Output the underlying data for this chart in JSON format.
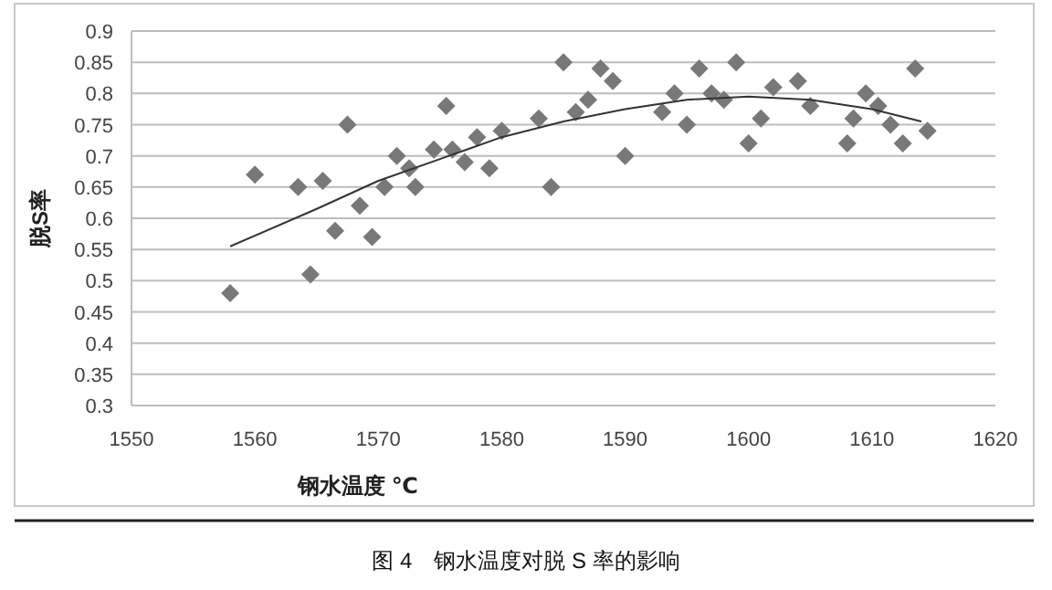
{
  "chart_data": {
    "type": "scatter",
    "xlabel": "钢水温度 ℃",
    "ylabel": "脱S率",
    "annotations": [
      "图 4　钢水温度对脱 S 率的影响"
    ],
    "xlim": [
      1550,
      1620
    ],
    "xticks": [
      1550,
      1560,
      1570,
      1580,
      1590,
      1600,
      1610,
      1620
    ],
    "ylim": [
      0.3,
      0.9
    ],
    "yticks": [
      0.3,
      0.35,
      0.4,
      0.45,
      0.5,
      0.55,
      0.6,
      0.65,
      0.7,
      0.75,
      0.8,
      0.85,
      0.9
    ],
    "grid": "y",
    "series": [
      {
        "marker": "diamond",
        "color": "#787878",
        "x": [
          1558,
          1560,
          1563.5,
          1564.5,
          1565.5,
          1566.5,
          1567.5,
          1568.5,
          1569.5,
          1570.5,
          1571.5,
          1572.5,
          1573,
          1574.5,
          1575.5,
          1576,
          1577,
          1578,
          1579,
          1580,
          1583,
          1584,
          1585,
          1586,
          1587,
          1588,
          1589,
          1590,
          1593,
          1594,
          1595,
          1596,
          1597,
          1598,
          1599,
          1600,
          1601,
          1602,
          1604,
          1605,
          1608,
          1608.5,
          1609.5,
          1610.5,
          1611.5,
          1612.5,
          1613.5,
          1614.5
        ],
        "values": [
          0.48,
          0.67,
          0.65,
          0.51,
          0.66,
          0.58,
          0.75,
          0.62,
          0.57,
          0.65,
          0.7,
          0.68,
          0.65,
          0.71,
          0.78,
          0.71,
          0.69,
          0.73,
          0.68,
          0.74,
          0.76,
          0.65,
          0.85,
          0.77,
          0.79,
          0.84,
          0.82,
          0.7,
          0.77,
          0.8,
          0.75,
          0.84,
          0.8,
          0.79,
          0.85,
          0.72,
          0.76,
          0.81,
          0.82,
          0.78,
          0.72,
          0.76,
          0.8,
          0.78,
          0.75,
          0.72,
          0.84,
          0.74
        ]
      },
      {
        "type": "line",
        "color": "#333333",
        "x": [
          1558,
          1565,
          1570,
          1575,
          1580,
          1585,
          1590,
          1595,
          1600,
          1605,
          1610,
          1614
        ],
        "values": [
          0.555,
          0.615,
          0.66,
          0.695,
          0.73,
          0.755,
          0.775,
          0.79,
          0.795,
          0.79,
          0.775,
          0.755
        ]
      }
    ]
  }
}
